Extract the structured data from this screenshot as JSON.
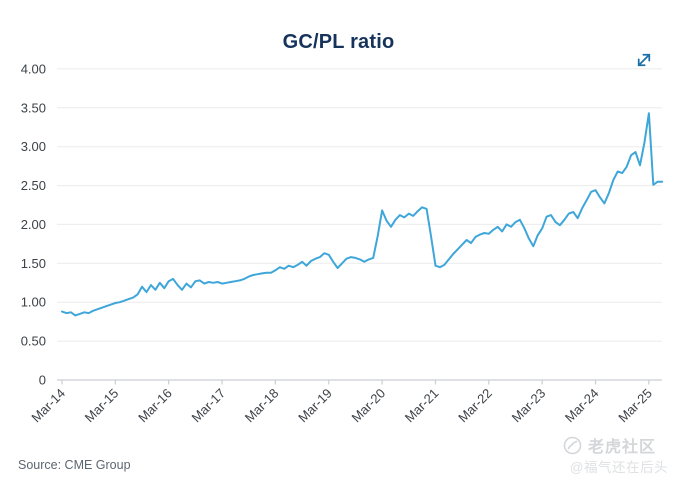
{
  "header": {
    "title": "GC/PL ratio"
  },
  "toolbar": {
    "expand_icon": "diagonal-expand-arrows",
    "expand_icon_color": "#1d6fa8"
  },
  "chart_data": {
    "type": "line",
    "title": "GC/PL ratio",
    "xlabel": "",
    "ylabel": "",
    "ylim": [
      0,
      4.0
    ],
    "grid": "horizontal",
    "legend": "none",
    "line_color": "#3fa6da",
    "grid_color": "#ebebeb",
    "axis_color": "#c9ced3",
    "y_tick_labels": [
      "0",
      "0.50",
      "1.00",
      "1.50",
      "2.00",
      "2.50",
      "3.00",
      "3.50",
      "4.00"
    ],
    "x_tick_labels": [
      "Mar-14",
      "Mar-15",
      "Mar-16",
      "Mar-17",
      "Mar-18",
      "Mar-19",
      "Mar-20",
      "Mar-21",
      "Mar-22",
      "Mar-23",
      "Mar-24",
      "Mar-25"
    ],
    "series": [
      {
        "name": "GC/PL ratio",
        "start": "Mar-2014",
        "end": "Jun-2025",
        "frequency": "monthly",
        "values": [
          0.88,
          0.86,
          0.87,
          0.83,
          0.85,
          0.87,
          0.86,
          0.89,
          0.91,
          0.93,
          0.95,
          0.97,
          0.99,
          1.0,
          1.02,
          1.04,
          1.06,
          1.1,
          1.2,
          1.13,
          1.22,
          1.16,
          1.25,
          1.18,
          1.27,
          1.3,
          1.22,
          1.16,
          1.24,
          1.19,
          1.27,
          1.28,
          1.24,
          1.26,
          1.25,
          1.26,
          1.24,
          1.25,
          1.26,
          1.27,
          1.28,
          1.3,
          1.33,
          1.35,
          1.36,
          1.37,
          1.38,
          1.38,
          1.41,
          1.45,
          1.43,
          1.47,
          1.45,
          1.48,
          1.52,
          1.47,
          1.53,
          1.56,
          1.58,
          1.63,
          1.61,
          1.52,
          1.44,
          1.5,
          1.56,
          1.58,
          1.57,
          1.55,
          1.52,
          1.55,
          1.57,
          1.85,
          2.18,
          2.05,
          1.97,
          2.06,
          2.12,
          2.09,
          2.14,
          2.11,
          2.17,
          2.22,
          2.2,
          1.85,
          1.47,
          1.45,
          1.48,
          1.55,
          1.62,
          1.68,
          1.74,
          1.8,
          1.76,
          1.84,
          1.87,
          1.89,
          1.88,
          1.93,
          1.97,
          1.91,
          2.0,
          1.97,
          2.03,
          2.06,
          1.95,
          1.82,
          1.72,
          1.86,
          1.95,
          2.1,
          2.12,
          2.03,
          1.99,
          2.06,
          2.14,
          2.16,
          2.08,
          2.21,
          2.31,
          2.42,
          2.44,
          2.35,
          2.27,
          2.4,
          2.57,
          2.68,
          2.66,
          2.74,
          2.89,
          2.93,
          2.76,
          3.05,
          3.43,
          2.51,
          2.55,
          2.55
        ]
      }
    ]
  },
  "footer": {
    "source": "Source: CME Group"
  },
  "watermark": {
    "logo_icon": "tiger-circle-logo",
    "community": "老虎社区",
    "user": "@福气还在后头"
  }
}
